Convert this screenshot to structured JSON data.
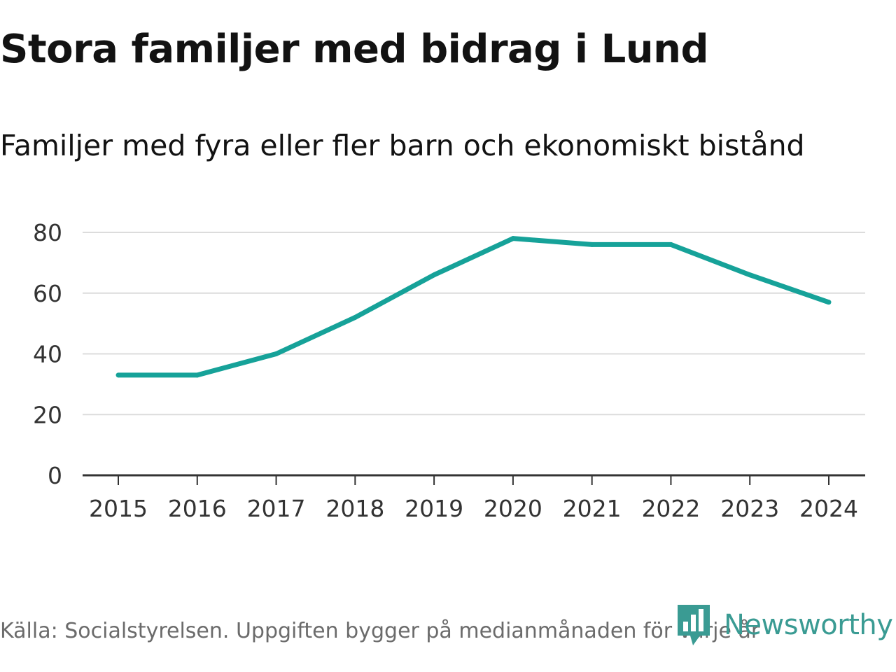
{
  "header": {
    "title": "Stora familjer med bidrag i Lund",
    "subtitle": "Familjer med fyra eller fler barn och ekonomiskt bistånd"
  },
  "footer": {
    "source": "Källa: Socialstyrelsen. Uppgiften bygger på medianmånaden för varje år",
    "brand": "Newsworthy"
  },
  "colors": {
    "line": "#16a299",
    "grid": "#dcdcdc",
    "axis": "#333333",
    "tick_text": "#333333",
    "brand": "#3a9b93"
  },
  "icons": {
    "brand_logo": "newsworthy-logo-icon"
  },
  "chart_data": {
    "type": "line",
    "title": "Stora familjer med bidrag i Lund",
    "subtitle": "Familjer med fyra eller fler barn och ekonomiskt bistånd",
    "xlabel": "",
    "ylabel": "",
    "categories": [
      "2015",
      "2016",
      "2017",
      "2018",
      "2019",
      "2020",
      "2021",
      "2022",
      "2023",
      "2024"
    ],
    "series": [
      {
        "name": "Familjer med fyra eller fler barn och ekonomiskt bistånd",
        "values": [
          33,
          33,
          40,
          52,
          66,
          78,
          76,
          76,
          66,
          57
        ]
      }
    ],
    "ylim": [
      0,
      80
    ],
    "yticks": [
      "0",
      "20",
      "40",
      "60",
      "80"
    ],
    "grid": true,
    "legend": "none"
  }
}
